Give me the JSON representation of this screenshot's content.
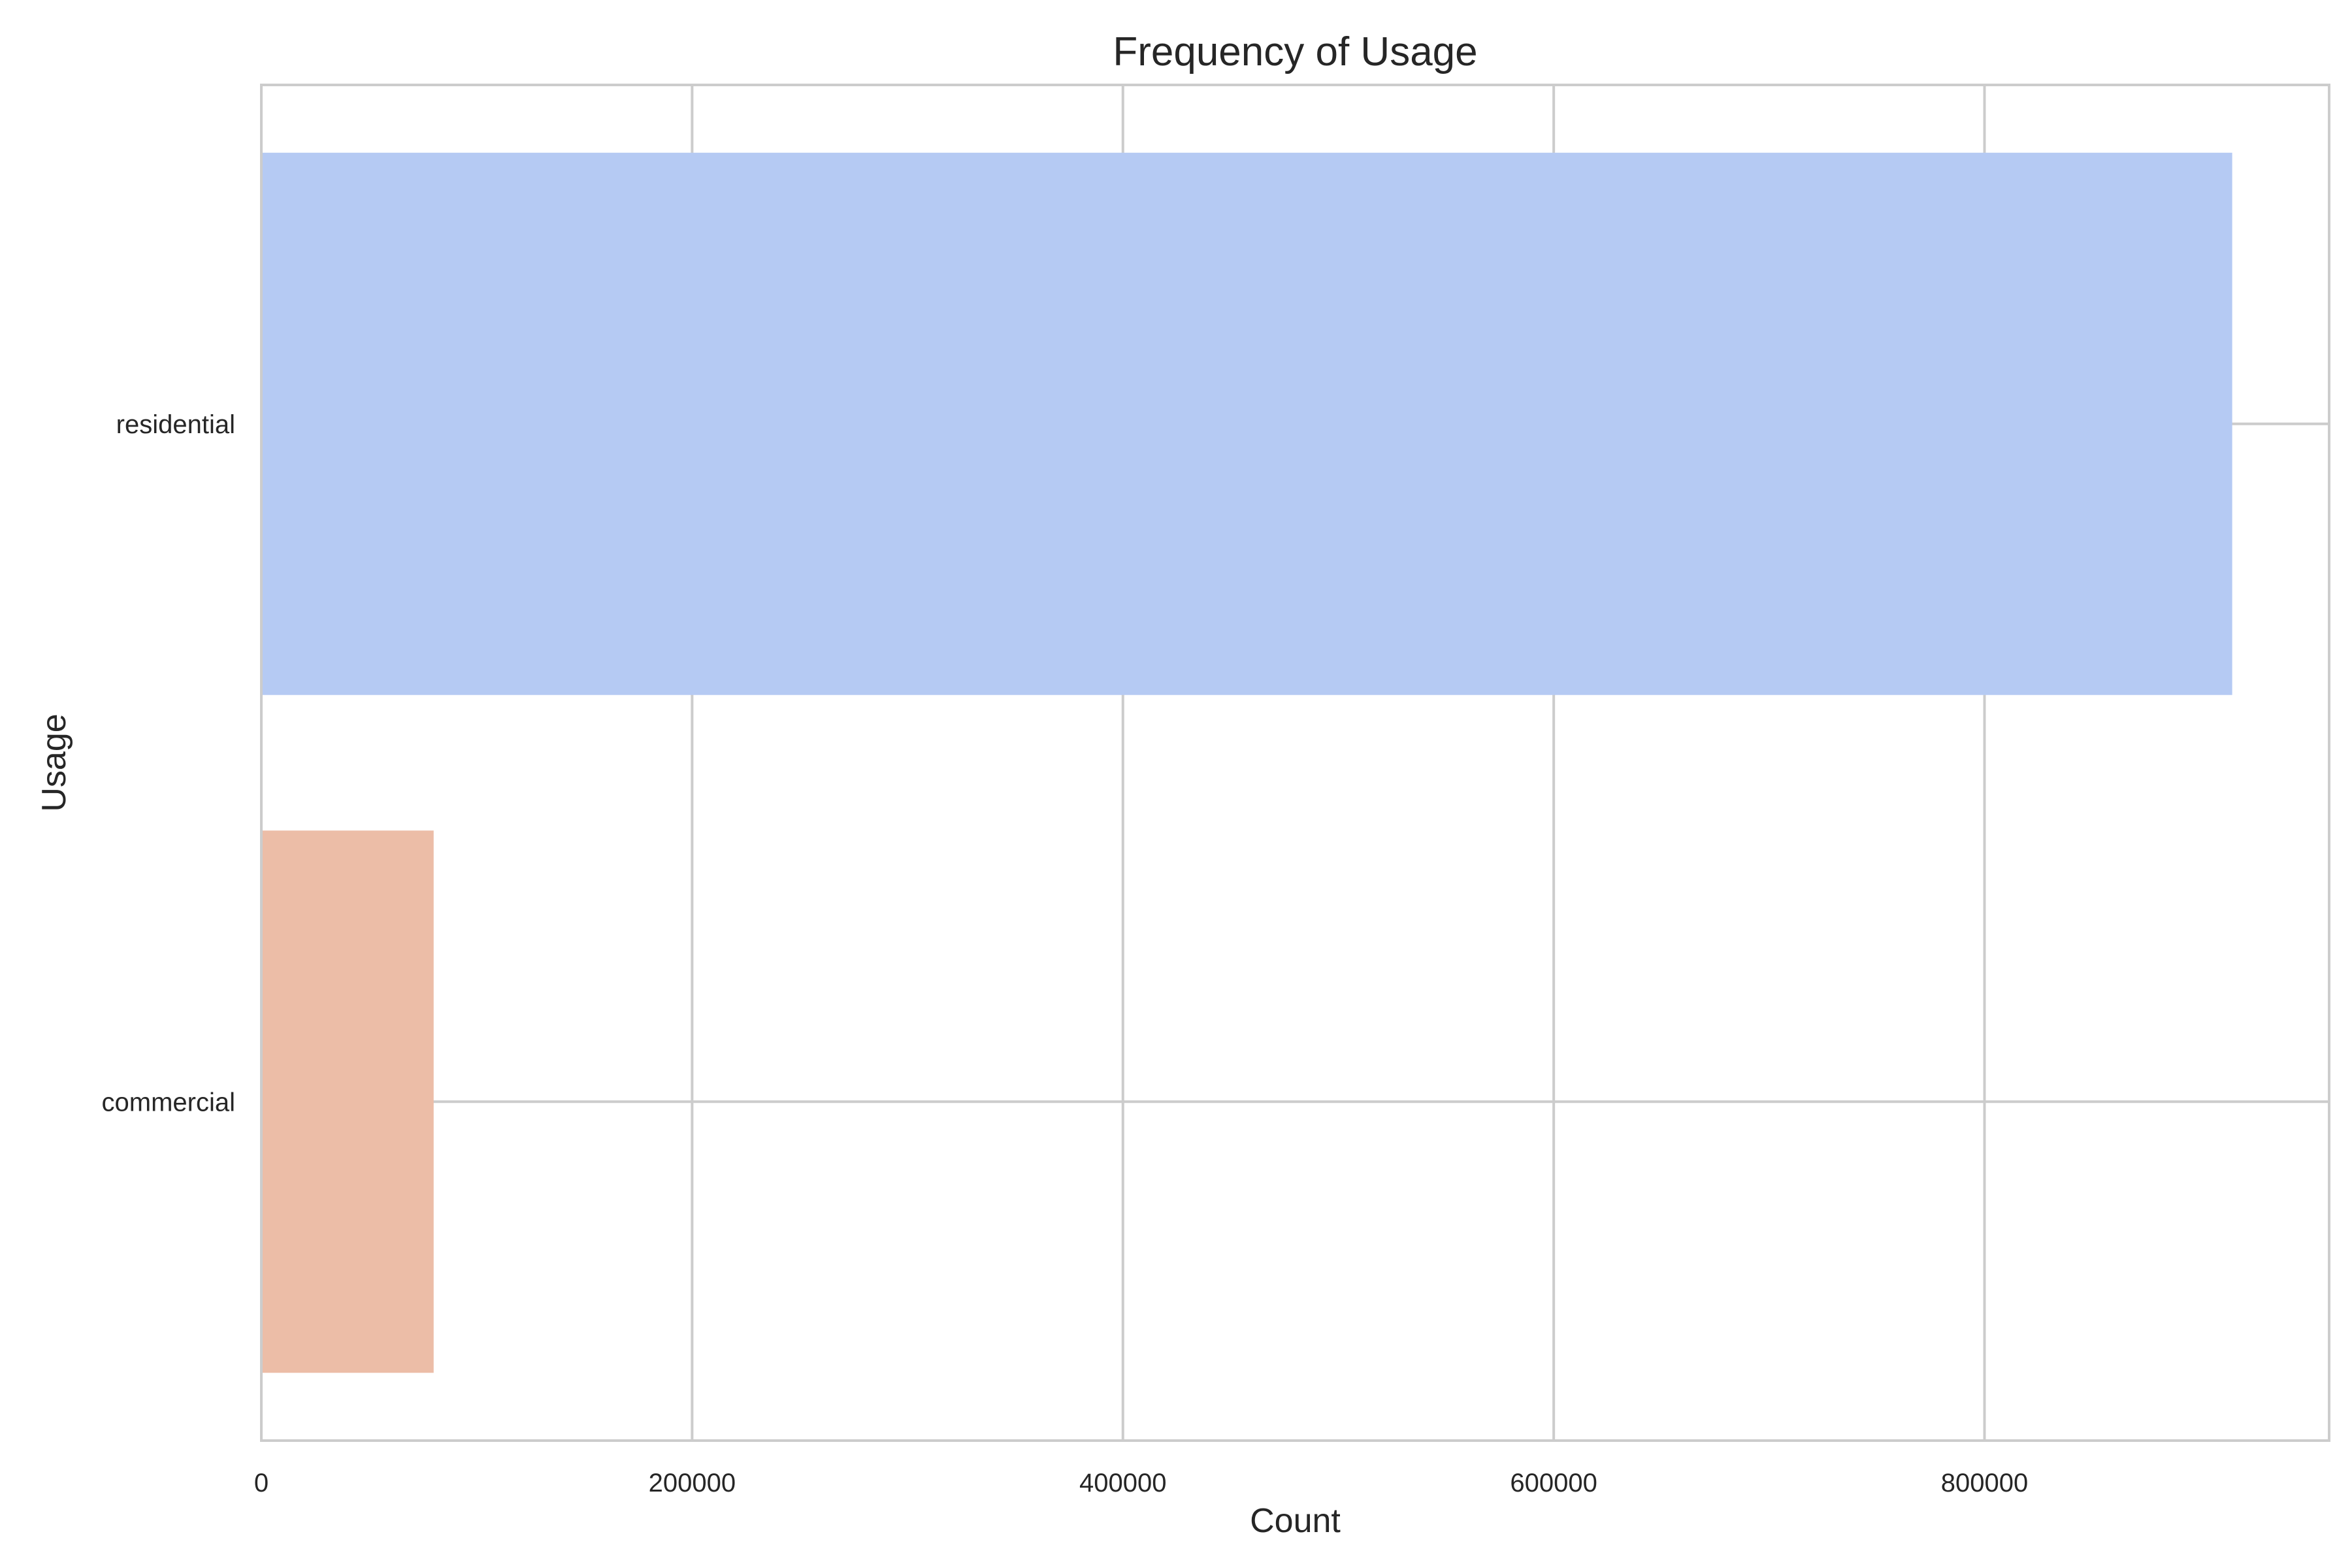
{
  "chart_data": {
    "type": "bar",
    "orientation": "horizontal",
    "title": "Frequency of Usage",
    "xlabel": "Count",
    "ylabel": "Usage",
    "categories": [
      "residential",
      "commercial"
    ],
    "values": [
      915000,
      80000
    ],
    "xlim": [
      0,
      960000
    ],
    "xticks": [
      0,
      200000,
      400000,
      600000,
      800000
    ],
    "xtick_labels": [
      "0",
      "200000",
      "400000",
      "600000",
      "800000"
    ],
    "grid": true,
    "legend": "none",
    "bar_colors": [
      "#b5caf3",
      "#ecbda7"
    ],
    "grid_color": "#cccccc",
    "frame_color": "#cccccc"
  }
}
